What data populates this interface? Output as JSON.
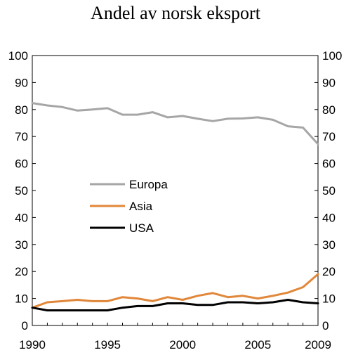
{
  "chart_data": {
    "type": "line",
    "title": "Andel av norsk eksport",
    "x": [
      1990,
      1991,
      1992,
      1993,
      1994,
      1995,
      1996,
      1997,
      1998,
      1999,
      2000,
      2001,
      2002,
      2003,
      2004,
      2005,
      2006,
      2007,
      2008,
      2009
    ],
    "x_tick_labels": [
      "1990",
      "1995",
      "2000",
      "2005",
      "2009"
    ],
    "x_ticks": [
      1990,
      1995,
      2000,
      2005,
      2009
    ],
    "xlim": [
      1990,
      2009
    ],
    "ylim": [
      0,
      100
    ],
    "y_ticks": [
      0,
      10,
      20,
      30,
      40,
      50,
      60,
      70,
      80,
      90,
      100
    ],
    "y_tick_labels": [
      "0",
      "10",
      "20",
      "30",
      "40",
      "50",
      "60",
      "70",
      "80",
      "90",
      "100"
    ],
    "right_axis": true,
    "grid": false,
    "legend_position": "center-left",
    "series": [
      {
        "name": "Europa",
        "color": "#a6a6a6",
        "values": [
          82.4,
          81.5,
          80.9,
          79.6,
          80.0,
          80.5,
          78.1,
          78.1,
          79.0,
          77.1,
          77.6,
          76.6,
          75.7,
          76.6,
          76.7,
          77.1,
          76.2,
          73.8,
          73.3,
          67.2
        ]
      },
      {
        "name": "Asia",
        "color": "#e0873a",
        "values": [
          6.6,
          8.6,
          9.0,
          9.5,
          9.0,
          9.0,
          10.5,
          10.0,
          9.0,
          10.5,
          9.5,
          11.0,
          12.0,
          10.5,
          11.0,
          10.0,
          11.0,
          12.2,
          14.2,
          19.0
        ]
      },
      {
        "name": "USA",
        "color": "#000000",
        "values": [
          6.6,
          5.6,
          5.6,
          5.6,
          5.6,
          5.6,
          6.6,
          7.2,
          7.2,
          8.2,
          8.2,
          7.6,
          7.6,
          8.6,
          8.6,
          8.2,
          8.6,
          9.5,
          8.6,
          8.2
        ]
      }
    ]
  }
}
